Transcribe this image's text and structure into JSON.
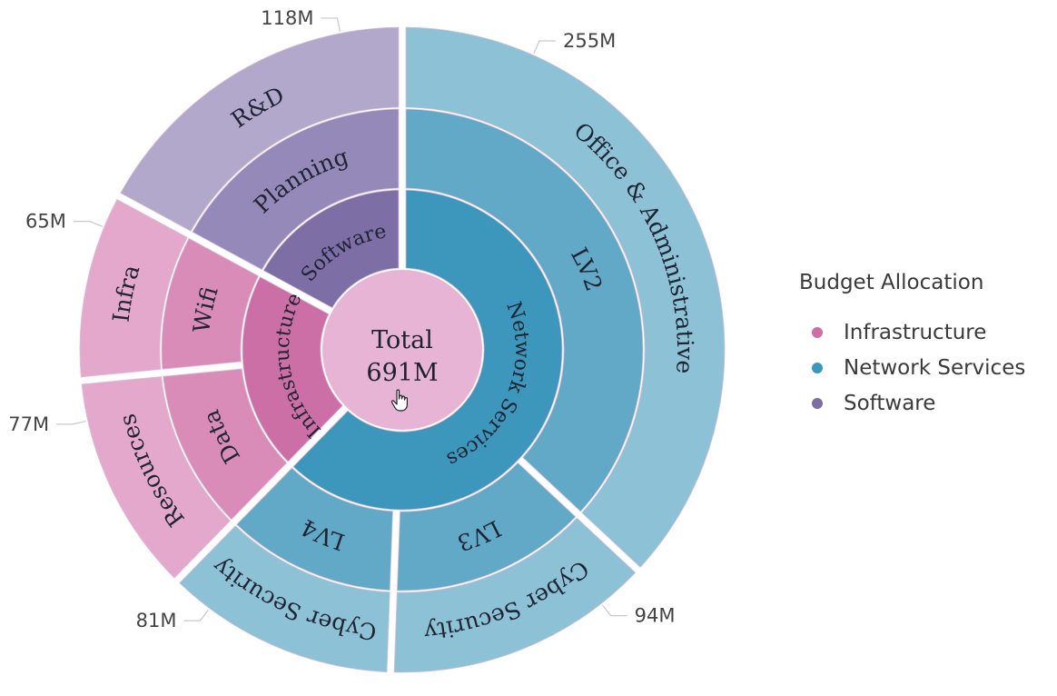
{
  "chart_data": {
    "type": "sunburst",
    "title": "Budget Allocation",
    "center": {
      "label": "Total",
      "value": "691M"
    },
    "legend": {
      "title": "Budget Allocation",
      "placement": "right",
      "items": [
        {
          "label": "Infrastructure",
          "color": "#cc6fa6"
        },
        {
          "label": "Network Services",
          "color": "#3d96bb"
        },
        {
          "label": "Software",
          "color": "#7d6ea6"
        }
      ]
    },
    "hierarchy": [
      {
        "name": "Network Services",
        "color": "#3d96bb",
        "children": [
          {
            "name": "LV2",
            "color": "#62a9c8",
            "children": [
              {
                "name": "Office & Administrative",
                "value": 255,
                "value_label": "255M",
                "color": "#8cc1d6"
              }
            ]
          },
          {
            "name": "LV3",
            "color": "#62a9c8",
            "children": [
              {
                "name": "Cyber Security",
                "value": 94,
                "value_label": "94M",
                "color": "#8cc1d6"
              }
            ]
          },
          {
            "name": "LV4",
            "color": "#62a9c8",
            "children": [
              {
                "name": "Cyber Security",
                "value": 81,
                "value_label": "81M",
                "color": "#8cc1d6"
              }
            ]
          }
        ]
      },
      {
        "name": "Infrastructure",
        "color": "#cc6fa6",
        "children": [
          {
            "name": "Data",
            "color": "#d98cb8",
            "children": [
              {
                "name": "Resources",
                "value": 77,
                "value_label": "77M",
                "color": "#e3a8cc"
              }
            ]
          },
          {
            "name": "Wifi",
            "color": "#d98cb8",
            "children": [
              {
                "name": "Infra",
                "value": 65,
                "value_label": "65M",
                "color": "#e3a8cc"
              }
            ]
          }
        ]
      },
      {
        "name": "Software",
        "color": "#7d6ea6",
        "children": [
          {
            "name": "Planning",
            "color": "#9489b8",
            "children": [
              {
                "name": "R&D",
                "value": 118,
                "value_label": "118M",
                "color": "#b1a8cc"
              }
            ]
          }
        ]
      }
    ],
    "center_color": "#e7b4d6"
  }
}
